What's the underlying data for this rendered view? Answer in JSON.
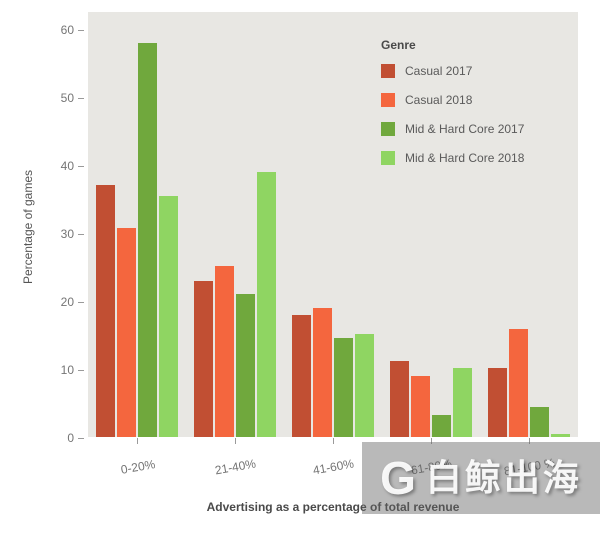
{
  "chart_data": {
    "type": "bar",
    "title": "",
    "categories": [
      "0-20%",
      "21-40%",
      "41-60%",
      "61-80%",
      "81-100 %"
    ],
    "series": [
      {
        "name": "Casual 2017",
        "color": "#c14f33",
        "values": [
          37,
          23,
          18,
          11.2,
          10.2
        ]
      },
      {
        "name": "Casual 2018",
        "color": "#f4663e",
        "values": [
          30.7,
          25.1,
          19,
          9,
          15.9
        ]
      },
      {
        "name": "Mid & Hard Core 2017",
        "color": "#70a83d",
        "values": [
          58,
          21,
          14.6,
          3.2,
          4.4
        ]
      },
      {
        "name": "Mid & Hard Core 2018",
        "color": "#8fd562",
        "values": [
          35.5,
          39,
          15.2,
          10.2,
          0.4
        ]
      }
    ],
    "xlabel": "Advertising as a percentage of total revenue",
    "ylabel": "Percentage of games",
    "ylim": [
      0,
      60
    ],
    "yticks": [
      0,
      10,
      20,
      30,
      40,
      50,
      60
    ],
    "legend_title": "Genre",
    "legend_position": "top-right",
    "plot_background": "#e8e7e3",
    "grid": "off"
  },
  "watermark": {
    "logo_letter": "G",
    "text": "白鲸出海"
  }
}
